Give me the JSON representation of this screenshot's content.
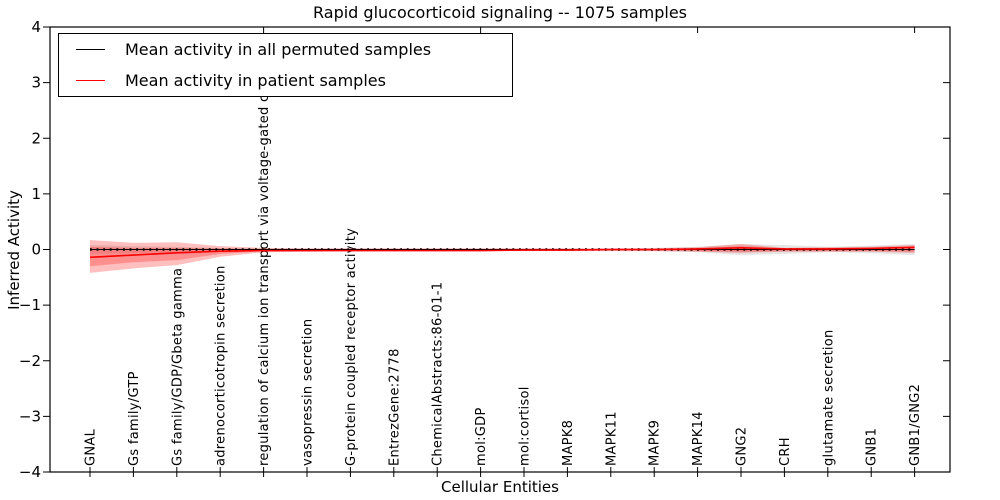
{
  "figure": {
    "title": "Rapid glucocorticoid signaling -- 1075 samples",
    "xlabel": "Cellular Entities",
    "ylabel": "Inferred Activity"
  },
  "legend": {
    "items": [
      {
        "label": "Mean activity in all permuted samples",
        "color": "#000000"
      },
      {
        "label": "Mean activity in patient samples",
        "color": "#ff0000"
      }
    ]
  },
  "chart_data": {
    "type": "line",
    "title": "Rapid glucocorticoid signaling -- 1075 samples",
    "xlabel": "Cellular Entities",
    "ylabel": "Inferred Activity",
    "ylim": [
      -4,
      4
    ],
    "grid": false,
    "legend_position": "upper left",
    "yticks": [
      4,
      3,
      2,
      1,
      0,
      -1,
      -2,
      -3,
      -4
    ],
    "ytick_labels": [
      "4",
      "3",
      "2",
      "1",
      "0",
      "−1",
      "−2",
      "−3",
      "−4"
    ],
    "categories": [
      "GNAL",
      "Gs family/GTP",
      "Gs family/GDP/Gbeta gamma",
      "adrenocorticotropin secretion",
      "regulation of calcium ion transport via voltage-gated channel",
      "vasopressin secretion",
      "G-protein coupled receptor activity",
      "EntrezGene:2778",
      "ChemicalAbstracts:86-01-1",
      "mol:GDP",
      "mol:cortisol",
      "MAPK8",
      "MAPK11",
      "MAPK9",
      "MAPK14",
      "GNG2",
      "CRH",
      "glutamate secretion",
      "GNB1",
      "GNB1/GNG2"
    ],
    "series": [
      {
        "name": "Mean activity in all permuted samples",
        "color": "#000000",
        "style": "dotted",
        "values": [
          0.0,
          0.0,
          0.0,
          0.0,
          0.0,
          0.0,
          0.0,
          0.0,
          0.0,
          0.0,
          0.0,
          0.0,
          0.0,
          0.0,
          0.0,
          0.0,
          0.0,
          0.0,
          0.0,
          0.0
        ]
      },
      {
        "name": "Mean activity in patient samples",
        "color": "#ff0000",
        "style": "solid",
        "values": [
          -0.14,
          -0.1,
          -0.06,
          -0.03,
          -0.02,
          -0.02,
          -0.02,
          -0.02,
          -0.02,
          -0.02,
          -0.01,
          -0.01,
          0.0,
          0.0,
          0.01,
          0.03,
          0.01,
          0.01,
          0.02,
          0.04
        ]
      }
    ],
    "bands": [
      {
        "name": "permuted-samples-range",
        "color": "#000000",
        "opacity": 0.1,
        "upper": [
          0.08,
          0.06,
          0.05,
          0.03,
          0.02,
          0.02,
          0.02,
          0.02,
          0.02,
          0.02,
          0.02,
          0.02,
          0.02,
          0.03,
          0.05,
          0.1,
          0.08,
          0.05,
          0.07,
          0.1
        ],
        "lower": [
          -0.08,
          -0.06,
          -0.05,
          -0.03,
          -0.02,
          -0.02,
          -0.02,
          -0.02,
          -0.02,
          -0.02,
          -0.02,
          -0.02,
          -0.02,
          -0.03,
          -0.05,
          -0.1,
          -0.08,
          -0.05,
          -0.07,
          -0.1
        ]
      },
      {
        "name": "patient-samples-range-outer",
        "color": "#ff0000",
        "opacity": 0.25,
        "upper": [
          0.17,
          0.12,
          0.13,
          0.06,
          0.03,
          0.02,
          0.02,
          0.02,
          0.02,
          0.02,
          0.02,
          0.02,
          0.02,
          0.02,
          0.04,
          0.1,
          0.03,
          0.04,
          0.05,
          0.08
        ],
        "lower": [
          -0.42,
          -0.34,
          -0.28,
          -0.13,
          -0.05,
          -0.04,
          -0.03,
          -0.03,
          -0.03,
          -0.03,
          -0.03,
          -0.03,
          -0.03,
          -0.03,
          -0.04,
          -0.06,
          -0.04,
          -0.04,
          -0.04,
          -0.06
        ]
      },
      {
        "name": "patient-samples-range-inner",
        "color": "#ff0000",
        "opacity": 0.25,
        "upper": [
          0.05,
          0.03,
          0.03,
          0.02,
          0.01,
          0.01,
          0.01,
          0.01,
          0.01,
          0.01,
          0.01,
          0.01,
          0.01,
          0.01,
          0.02,
          0.06,
          0.02,
          0.02,
          0.02,
          0.05
        ],
        "lower": [
          -0.3,
          -0.23,
          -0.19,
          -0.08,
          -0.03,
          -0.02,
          -0.02,
          -0.02,
          -0.02,
          -0.02,
          -0.02,
          -0.02,
          -0.02,
          -0.02,
          -0.03,
          -0.04,
          -0.03,
          -0.03,
          -0.03,
          -0.04
        ]
      }
    ]
  }
}
